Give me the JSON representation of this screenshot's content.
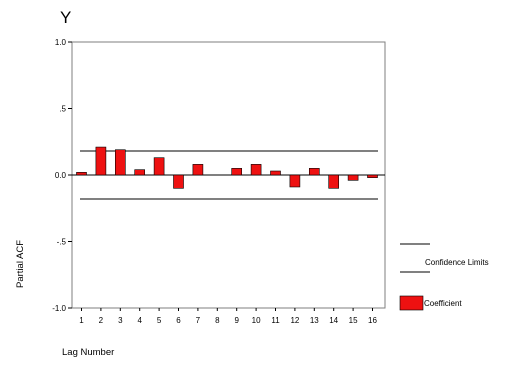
{
  "chart_data": {
    "type": "bar",
    "title": "Y",
    "xlabel": "Lag Number",
    "ylabel": "Partial ACF",
    "ylim": [
      -1.0,
      1.0
    ],
    "yticks": [
      {
        "value": 1.0,
        "label": "1.0"
      },
      {
        "value": 0.5,
        "label": ".5"
      },
      {
        "value": 0.0,
        "label": "0.0"
      },
      {
        "value": -0.5,
        "label": "-.5"
      },
      {
        "value": -1.0,
        "label": "-1.0"
      }
    ],
    "categories": [
      "1",
      "2",
      "3",
      "4",
      "5",
      "6",
      "7",
      "8",
      "9",
      "10",
      "11",
      "12",
      "13",
      "14",
      "15",
      "16"
    ],
    "series": [
      {
        "name": "Coefficient",
        "values": [
          0.02,
          0.21,
          0.19,
          0.04,
          0.13,
          -0.1,
          0.08,
          0.0,
          0.05,
          0.08,
          0.03,
          -0.09,
          0.05,
          -0.1,
          -0.04,
          -0.02
        ]
      }
    ],
    "confidence_limits": [
      0.18,
      -0.18
    ],
    "legend": {
      "position": "right",
      "items": [
        {
          "label": "Confidence Limits",
          "type": "line"
        },
        {
          "label": "Coefficient",
          "type": "box"
        }
      ]
    },
    "grid": false,
    "colors": {
      "bar": "#ee1111",
      "bar_stroke": "#000000",
      "line": "#000000"
    }
  }
}
